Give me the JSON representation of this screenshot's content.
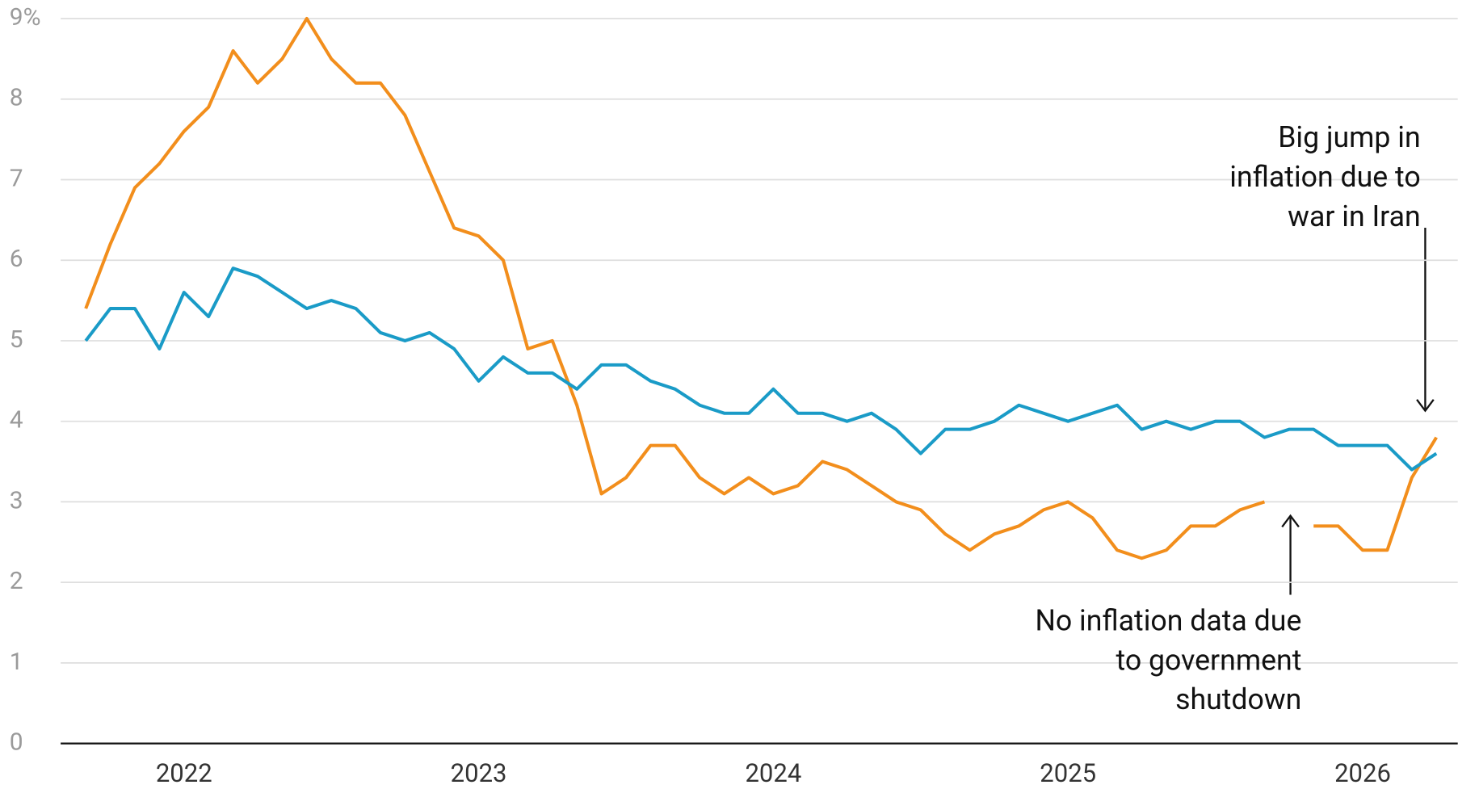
{
  "chart_data": {
    "type": "line",
    "categories": [
      null,
      null,
      null,
      null,
      "2022",
      null,
      null,
      null,
      null,
      null,
      null,
      null,
      null,
      null,
      null,
      null,
      "2023",
      null,
      null,
      null,
      null,
      null,
      null,
      null,
      null,
      null,
      null,
      null,
      "2024",
      null,
      null,
      null,
      null,
      null,
      null,
      null,
      null,
      null,
      null,
      null,
      "2025",
      null,
      null,
      null,
      null,
      null,
      null,
      null,
      null,
      null,
      null,
      null,
      "2026",
      null,
      null,
      null
    ],
    "series": [
      {
        "color": "#f28e1c",
        "values": [
          5.4,
          6.2,
          6.9,
          7.2,
          7.6,
          7.9,
          8.6,
          8.2,
          8.5,
          9.0,
          8.5,
          8.2,
          8.2,
          7.8,
          7.1,
          6.4,
          6.3,
          6.0,
          4.9,
          5.0,
          4.2,
          3.1,
          3.3,
          3.7,
          3.7,
          3.3,
          3.1,
          3.3,
          3.1,
          3.2,
          3.5,
          3.4,
          3.2,
          3.0,
          2.9,
          2.6,
          2.4,
          2.6,
          2.7,
          2.9,
          3.0,
          2.8,
          2.4,
          2.3,
          2.4,
          2.7,
          2.7,
          2.9,
          3.0,
          null,
          2.7,
          2.7,
          2.4,
          2.4,
          3.3,
          3.8
        ]
      },
      {
        "color": "#1a9bc7",
        "values": [
          5.0,
          5.4,
          5.4,
          4.9,
          5.6,
          5.3,
          5.9,
          5.8,
          5.6,
          5.4,
          5.5,
          5.4,
          5.1,
          5.0,
          5.1,
          4.9,
          4.5,
          4.8,
          4.6,
          4.6,
          4.4,
          4.7,
          4.7,
          4.5,
          4.4,
          4.2,
          4.1,
          4.1,
          4.4,
          4.1,
          4.1,
          4.0,
          4.1,
          3.9,
          3.6,
          3.9,
          3.9,
          4.0,
          4.2,
          4.1,
          4.0,
          4.1,
          4.2,
          3.9,
          4.0,
          3.9,
          4.0,
          4.0,
          3.8,
          3.9,
          3.9,
          3.7,
          3.7,
          3.7,
          3.4,
          3.6
        ]
      }
    ],
    "ylim": [
      0,
      9
    ],
    "yticks": [
      0,
      1,
      2,
      3,
      4,
      5,
      6,
      7,
      8,
      {
        "value": 9,
        "label": "9%"
      }
    ],
    "grid": true,
    "annotations": [
      {
        "lines": [
          "Big jump in",
          "inflation due to",
          "war in Iran"
        ]
      },
      {
        "lines": [
          "No inflation data due",
          "to government",
          "shutdown"
        ]
      }
    ]
  }
}
